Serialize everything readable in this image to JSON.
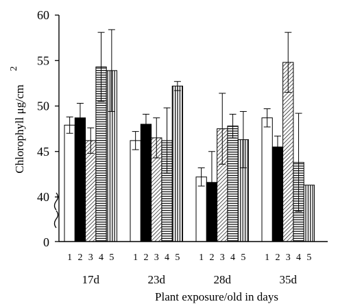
{
  "chart_data": {
    "type": "bar",
    "title": "",
    "xlabel": "Plant exposure/old in days",
    "ylabel": "Chlorophyll  μg/cm",
    "ylabel_superscript": "2",
    "ylim": [
      40,
      60
    ],
    "axis_break": true,
    "y_ticks": [
      40,
      45,
      50,
      55,
      60
    ],
    "y_break_label": "0",
    "grid": false,
    "legend": "none",
    "categories": [
      "17d",
      "23d",
      "28d",
      "35d"
    ],
    "bar_numbers": [
      "1",
      "2",
      "3",
      "4",
      "5"
    ],
    "series": [
      {
        "pattern": "open",
        "values": [
          47.9,
          46.2,
          42.2,
          48.7
        ],
        "errors": [
          0.9,
          1.0,
          1.0,
          1.0
        ]
      },
      {
        "pattern": "solid",
        "values": [
          48.7,
          48.0,
          41.6,
          45.5
        ],
        "errors": [
          1.6,
          1.1,
          3.4,
          1.2
        ]
      },
      {
        "pattern": "diagonal",
        "values": [
          46.2,
          46.5,
          47.5,
          54.8
        ],
        "errors": [
          1.4,
          2.2,
          3.9,
          3.3
        ]
      },
      {
        "pattern": "horizontal",
        "values": [
          54.3,
          46.2,
          47.8,
          43.8
        ],
        "errors": [
          3.8,
          3.6,
          1.3,
          5.4
        ]
      },
      {
        "pattern": "vertical",
        "values": [
          53.9,
          52.2,
          46.3,
          41.3
        ],
        "errors": [
          4.5,
          0.5,
          3.1,
          0
        ]
      }
    ],
    "colors": {
      "ink": "#000000",
      "background": "#ffffff"
    }
  }
}
